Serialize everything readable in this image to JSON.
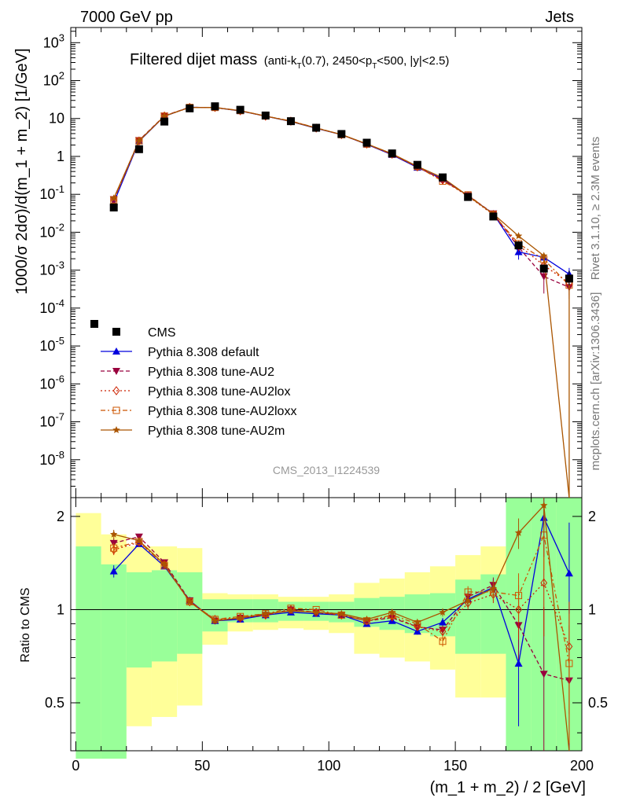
{
  "header": {
    "energy_label": "7000 GeV pp",
    "process_label": "Jets",
    "side_label_events": "Rivet 3.1.10, ≥ 2.3M events",
    "side_label_site": "mcplots.cern.ch [arXiv:1306.3436]",
    "analysis_id": "CMS_2013_I1224539"
  },
  "chart_data": {
    "type": "line",
    "title": "Filtered dijet mass",
    "title_cut_parts": [
      "(anti-k",
      "T",
      "(0.7), 2450<p",
      "T",
      "<500, |y|<2.5)"
    ],
    "xlabel": "(m_1 + m_2) / 2 [GeV]",
    "ylabel": "1000/σ 2dσ)/d(m_1 + m_2) [1/GeV]",
    "ratio_ylabel": "Ratio to CMS",
    "xlim": [
      -2,
      200
    ],
    "ylim_log": [
      -9,
      3.4
    ],
    "ratio_ylim": [
      0.35,
      2.3
    ],
    "x_ticks": [
      0,
      50,
      100,
      150,
      200
    ],
    "y_tick_exponents": [
      -8,
      -7,
      -6,
      -5,
      -4,
      -3,
      -2,
      -1,
      0,
      1,
      2,
      3
    ],
    "y_tick_plain": {
      "0": "1",
      "1": "10"
    },
    "ratio_ticks": [
      {
        "v": 0.5,
        "label": "0.5"
      },
      {
        "v": 1,
        "label": "1"
      },
      {
        "v": 2,
        "label": "2"
      }
    ],
    "x": [
      15,
      25,
      35,
      45,
      55,
      65,
      75,
      85,
      95,
      105,
      115,
      125,
      135,
      145,
      155,
      165,
      175,
      185,
      195
    ],
    "bin_edges": [
      10,
      20,
      30,
      40,
      50,
      60,
      70,
      80,
      90,
      100,
      110,
      120,
      130,
      140,
      150,
      160,
      170,
      180,
      190,
      200
    ],
    "band_edges": [
      0,
      10,
      20,
      30,
      40,
      50,
      60,
      70,
      80,
      90,
      100,
      110,
      120,
      130,
      140,
      150,
      160,
      170,
      180,
      190,
      200
    ],
    "band_green": [
      [
        0.33,
        1.6
      ],
      [
        0.33,
        1.4
      ],
      [
        0.65,
        1.32
      ],
      [
        0.68,
        1.34
      ],
      [
        0.72,
        1.32
      ],
      [
        0.85,
        1.08
      ],
      [
        0.91,
        1.08
      ],
      [
        0.91,
        1.08
      ],
      [
        0.92,
        1.06
      ],
      [
        0.92,
        1.06
      ],
      [
        0.91,
        1.06
      ],
      [
        0.88,
        1.09
      ],
      [
        0.86,
        1.1
      ],
      [
        0.84,
        1.12
      ],
      [
        0.82,
        1.13
      ],
      [
        0.72,
        1.25
      ],
      [
        0.72,
        1.3
      ],
      [
        0.35,
        2.3
      ],
      [
        0.35,
        2.3
      ],
      [
        0.35,
        2.3
      ]
    ],
    "band_yellow": [
      [
        0.33,
        2.05
      ],
      [
        0.33,
        1.75
      ],
      [
        0.42,
        1.6
      ],
      [
        0.45,
        1.6
      ],
      [
        0.49,
        1.58
      ],
      [
        0.77,
        1.13
      ],
      [
        0.85,
        1.12
      ],
      [
        0.86,
        1.12
      ],
      [
        0.87,
        1.1
      ],
      [
        0.86,
        1.1
      ],
      [
        0.84,
        1.12
      ],
      [
        0.72,
        1.22
      ],
      [
        0.7,
        1.26
      ],
      [
        0.68,
        1.32
      ],
      [
        0.64,
        1.38
      ],
      [
        0.52,
        1.5
      ],
      [
        0.52,
        1.6
      ],
      [
        0.35,
        2.3
      ],
      [
        0.35,
        2.3
      ],
      [
        0.35,
        2.3
      ]
    ],
    "cms": {
      "name": "CMS",
      "values": [
        0.045,
        1.55,
        8.3,
        18.5,
        21.0,
        17.0,
        12.0,
        8.5,
        5.7,
        3.9,
        2.3,
        1.2,
        0.6,
        0.28,
        0.085,
        0.026,
        0.0045,
        0.0011,
        0.0006
      ],
      "err_low": [
        0.045,
        1.55,
        8.3,
        18.5,
        21.0,
        17.0,
        12.0,
        8.5,
        5.7,
        3.9,
        2.3,
        1.2,
        0.6,
        0.28,
        0.085,
        0.026,
        0.0045,
        0.0011,
        0.00045
      ],
      "err_high": [
        0.045,
        1.55,
        8.3,
        18.5,
        21.0,
        17.0,
        12.0,
        8.5,
        5.7,
        3.9,
        2.3,
        1.2,
        0.6,
        0.28,
        0.085,
        0.026,
        0.0045,
        0.0011,
        0.00075
      ],
      "color": "#000000"
    },
    "series": [
      {
        "name": "Pythia 8.308 default",
        "color": "#0000dd",
        "dash": "",
        "marker": "triangle-up",
        "ratio": [
          1.33,
          1.63,
          1.38,
          1.07,
          0.92,
          0.93,
          0.96,
          0.98,
          0.97,
          0.96,
          0.9,
          0.92,
          0.85,
          0.91,
          1.08,
          1.18,
          0.67,
          1.98,
          1.31
        ],
        "ratio_err": [
          0.06,
          0.02,
          0.02,
          0.01,
          0.01,
          0.01,
          0.01,
          0.01,
          0.01,
          0.01,
          0.01,
          0.02,
          0.02,
          0.03,
          0.05,
          0.07,
          0.25,
          0.5,
          0.6
        ]
      },
      {
        "name": "Pythia 8.308 tune-AU2",
        "color": "#99003d",
        "dash": "5,3",
        "marker": "triangle-down",
        "ratio": [
          1.64,
          1.72,
          1.42,
          1.07,
          0.92,
          0.94,
          0.96,
          1.0,
          0.98,
          0.96,
          0.92,
          0.94,
          0.88,
          0.86,
          1.1,
          1.2,
          0.89,
          0.62,
          0.59
        ],
        "ratio_err": [
          0.06,
          0.02,
          0.02,
          0.01,
          0.01,
          0.01,
          0.01,
          0.01,
          0.01,
          0.01,
          0.01,
          0.02,
          0.02,
          0.03,
          0.05,
          0.07,
          0.2,
          0.4,
          0.3
        ]
      },
      {
        "name": "Pythia 8.308 tune-AU2lox",
        "color": "#cc2200",
        "dash": "2,3",
        "marker": "diamond-open",
        "ratio": [
          1.56,
          1.65,
          1.4,
          1.06,
          0.93,
          0.94,
          0.96,
          1.0,
          0.98,
          0.96,
          0.92,
          0.95,
          0.88,
          0.85,
          1.05,
          1.12,
          1.0,
          1.22,
          0.76
        ],
        "ratio_err": [
          0.06,
          0.02,
          0.02,
          0.01,
          0.01,
          0.01,
          0.01,
          0.01,
          0.01,
          0.01,
          0.01,
          0.02,
          0.02,
          0.03,
          0.05,
          0.07,
          0.2,
          0.4,
          0.3
        ]
      },
      {
        "name": "Pythia 8.308 tune-AU2loxx",
        "color": "#cc5500",
        "dash": "6,3,2,3",
        "marker": "square-open",
        "ratio": [
          1.58,
          1.66,
          1.39,
          1.06,
          0.93,
          0.95,
          0.97,
          1.01,
          1.0,
          0.96,
          0.92,
          0.96,
          0.9,
          0.79,
          1.14,
          1.14,
          1.11,
          1.74,
          0.67
        ],
        "ratio_err": [
          0.06,
          0.02,
          0.02,
          0.01,
          0.01,
          0.01,
          0.01,
          0.01,
          0.01,
          0.01,
          0.01,
          0.02,
          0.02,
          0.03,
          0.05,
          0.07,
          0.2,
          0.4,
          0.3
        ]
      },
      {
        "name": "Pythia 8.308 tune-AU2m",
        "color": "#aa5500",
        "dash": "",
        "marker": "star",
        "ratio": [
          1.75,
          1.67,
          1.4,
          1.06,
          0.92,
          0.94,
          0.97,
          0.99,
          0.98,
          0.97,
          0.93,
          0.98,
          0.91,
          0.98,
          1.07,
          1.17,
          1.77,
          2.17,
          0.0
        ],
        "ratio_err": [
          0.06,
          0.02,
          0.02,
          0.01,
          0.01,
          0.01,
          0.01,
          0.01,
          0.01,
          0.01,
          0.01,
          0.02,
          0.02,
          0.03,
          0.05,
          0.07,
          0.2,
          0.4,
          0.3
        ]
      }
    ],
    "legend_placement": "center-left"
  }
}
